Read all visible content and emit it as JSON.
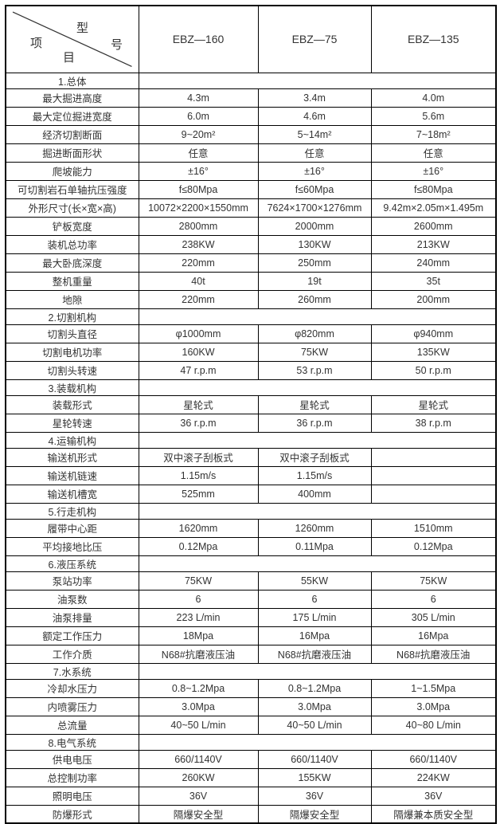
{
  "corner": {
    "xing": "型",
    "hao": "号",
    "xiang": "项",
    "mu": "目"
  },
  "models": [
    "EBZ—160",
    "EBZ—75",
    "EBZ—135"
  ],
  "rows": [
    {
      "type": "section",
      "label": "1.总体"
    },
    {
      "type": "data",
      "label": "最大掘进高度",
      "values": [
        "4.3m",
        "3.4m",
        "4.0m"
      ]
    },
    {
      "type": "data",
      "label": "最大定位掘进宽度",
      "values": [
        "6.0m",
        "4.6m",
        "5.6m"
      ]
    },
    {
      "type": "data",
      "label": "经济切割断面",
      "values": [
        "9~20m²",
        "5~14m²",
        "7~18m²"
      ]
    },
    {
      "type": "data",
      "label": "掘进断面形状",
      "values": [
        "任意",
        "任意",
        "任意"
      ]
    },
    {
      "type": "data",
      "label": "爬坡能力",
      "values": [
        "±16°",
        "±16°",
        "±16°"
      ]
    },
    {
      "type": "data",
      "label": "可切割岩石单轴抗压强度",
      "values": [
        "f≤80Mpa",
        "f≤60Mpa",
        "f≤80Mpa"
      ]
    },
    {
      "type": "data",
      "label": "外形尺寸(长×宽×高)",
      "values": [
        "10072×2200×1550mm",
        "7624×1700×1276mm",
        "9.42m×2.05m×1.495m"
      ]
    },
    {
      "type": "data",
      "label": "铲板宽度",
      "values": [
        "2800mm",
        "2000mm",
        "2600mm"
      ]
    },
    {
      "type": "data",
      "label": "装机总功率",
      "values": [
        "238KW",
        "130KW",
        "213KW"
      ]
    },
    {
      "type": "data",
      "label": "最大卧底深度",
      "values": [
        "220mm",
        "250mm",
        "240mm"
      ]
    },
    {
      "type": "data",
      "label": "整机重量",
      "values": [
        "40t",
        "19t",
        "35t"
      ]
    },
    {
      "type": "data",
      "label": "地隙",
      "values": [
        "220mm",
        "260mm",
        "200mm"
      ]
    },
    {
      "type": "section",
      "label": "2.切割机构"
    },
    {
      "type": "data",
      "label": "切割头直径",
      "values": [
        "φ1000mm",
        "φ820mm",
        "φ940mm"
      ]
    },
    {
      "type": "data",
      "label": "切割电机功率",
      "values": [
        "160KW",
        "75KW",
        "135KW"
      ]
    },
    {
      "type": "data",
      "label": "切割头转速",
      "values": [
        "47 r.p.m",
        "53 r.p.m",
        "50 r.p.m"
      ]
    },
    {
      "type": "section",
      "label": "3.装载机构"
    },
    {
      "type": "data",
      "label": "装载形式",
      "values": [
        "星轮式",
        "星轮式",
        "星轮式"
      ]
    },
    {
      "type": "data",
      "label": "星轮转速",
      "values": [
        "36 r.p.m",
        "36 r.p.m",
        "38 r.p.m"
      ]
    },
    {
      "type": "section",
      "label": "4.运输机构"
    },
    {
      "type": "data",
      "label": "输送机形式",
      "values": [
        "双中滚子刮板式",
        "双中滚子刮板式",
        ""
      ]
    },
    {
      "type": "data",
      "label": "输送机链速",
      "values": [
        "1.15m/s",
        "1.15m/s",
        ""
      ]
    },
    {
      "type": "data",
      "label": "输送机槽宽",
      "values": [
        "525mm",
        "400mm",
        ""
      ]
    },
    {
      "type": "section",
      "label": "5.行走机构"
    },
    {
      "type": "data",
      "label": "履带中心距",
      "values": [
        "1620mm",
        "1260mm",
        "1510mm"
      ]
    },
    {
      "type": "data",
      "label": "平均接地比压",
      "values": [
        "0.12Mpa",
        "0.11Mpa",
        "0.12Mpa"
      ]
    },
    {
      "type": "section",
      "label": "6.液压系统"
    },
    {
      "type": "data",
      "label": "泵站功率",
      "values": [
        "75KW",
        "55KW",
        "75KW"
      ]
    },
    {
      "type": "data",
      "label": "油泵数",
      "values": [
        "6",
        "6",
        "6"
      ]
    },
    {
      "type": "data",
      "label": "油泵排量",
      "values": [
        "223 L/min",
        "175 L/min",
        "305 L/min"
      ]
    },
    {
      "type": "data",
      "label": "额定工作压力",
      "values": [
        "18Mpa",
        "16Mpa",
        "16Mpa"
      ]
    },
    {
      "type": "data",
      "label": "工作介质",
      "values": [
        "N68#抗磨液压油",
        "N68#抗磨液压油",
        "N68#抗磨液压油"
      ]
    },
    {
      "type": "section",
      "label": "7.水系统"
    },
    {
      "type": "data",
      "label": "冷却水压力",
      "values": [
        "0.8~1.2Mpa",
        "0.8~1.2Mpa",
        "1~1.5Mpa"
      ]
    },
    {
      "type": "data",
      "label": "内喷雾压力",
      "values": [
        "3.0Mpa",
        "3.0Mpa",
        "3.0Mpa"
      ]
    },
    {
      "type": "data",
      "label": "总流量",
      "values": [
        "40~50 L/min",
        "40~50 L/min",
        "40~80 L/min"
      ]
    },
    {
      "type": "section",
      "label": "8.电气系统"
    },
    {
      "type": "data",
      "label": "供电电压",
      "values": [
        "660/1140V",
        "660/1140V",
        "660/1140V"
      ]
    },
    {
      "type": "data",
      "label": "总控制功率",
      "values": [
        "260KW",
        "155KW",
        "224KW"
      ]
    },
    {
      "type": "data",
      "label": "照明电压",
      "values": [
        "36V",
        "36V",
        "36V"
      ]
    },
    {
      "type": "data",
      "label": "防爆形式",
      "values": [
        "隔爆安全型",
        "隔爆安全型",
        "隔爆兼本质安全型"
      ]
    }
  ]
}
